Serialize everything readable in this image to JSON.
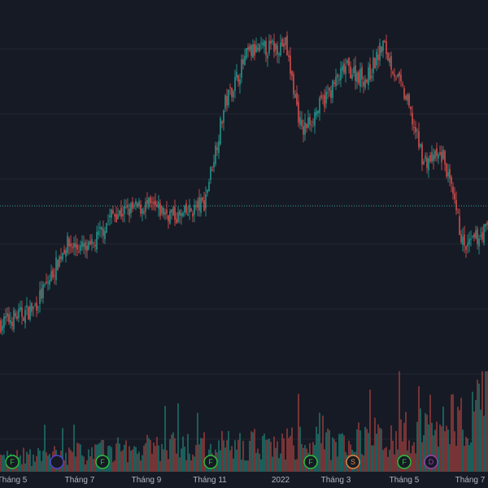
{
  "colors": {
    "background": "#161a25",
    "grid": "#232733",
    "up": "#26a69a",
    "down": "#ef5350",
    "vol_up": "#1f6f68",
    "vol_down": "#8f3a3b",
    "price_line": "#3aa39b",
    "axis_text": "#b2b5be"
  },
  "x_axis": {
    "tick_labels": [
      "Tháng 5",
      "Tháng 7",
      "Tháng 9",
      "Tháng 11",
      "2022",
      "Tháng 3",
      "Tháng 5",
      "Tháng 7"
    ]
  },
  "events": [
    {
      "letter": "F",
      "color": "#2ec23b",
      "icon": "earnings-flag-icon"
    },
    {
      "letter": "",
      "color": "#5b3fd1",
      "icon": "dividend-marker-icon"
    },
    {
      "letter": "F",
      "color": "#2ec23b",
      "icon": "earnings-flag-icon"
    },
    {
      "letter": "F",
      "color": "#2ec23b",
      "icon": "earnings-flag-icon"
    },
    {
      "letter": "F",
      "color": "#2ec23b",
      "icon": "earnings-flag-icon"
    },
    {
      "letter": "S",
      "color": "#e3873a",
      "icon": "split-marker-icon"
    },
    {
      "letter": "F",
      "color": "#2ec23b",
      "icon": "earnings-flag-icon"
    },
    {
      "letter": "D",
      "color": "#9b3fb1",
      "icon": "dividend-marker-icon"
    }
  ],
  "chart_data": {
    "type": "candlestick",
    "price_trend": [
      {
        "bar": 0,
        "close": 55
      },
      {
        "bar": 20,
        "close": 60
      },
      {
        "bar": 30,
        "close": 70
      },
      {
        "bar": 40,
        "close": 82
      },
      {
        "bar": 55,
        "close": 80
      },
      {
        "bar": 68,
        "close": 92
      },
      {
        "bar": 90,
        "close": 95
      },
      {
        "bar": 110,
        "close": 91
      },
      {
        "bar": 125,
        "close": 96
      },
      {
        "bar": 138,
        "close": 130
      },
      {
        "bar": 152,
        "close": 147
      },
      {
        "bar": 175,
        "close": 150
      },
      {
        "bar": 185,
        "close": 120
      },
      {
        "bar": 200,
        "close": 132
      },
      {
        "bar": 212,
        "close": 142
      },
      {
        "bar": 225,
        "close": 138
      },
      {
        "bar": 235,
        "close": 150
      },
      {
        "bar": 250,
        "close": 130
      },
      {
        "bar": 260,
        "close": 110
      },
      {
        "bar": 272,
        "close": 112
      },
      {
        "bar": 285,
        "close": 80
      },
      {
        "bar": 298,
        "close": 87
      }
    ],
    "current_price_level": 95,
    "y_range": [
      35,
      165
    ],
    "volume_range": [
      0,
      100
    ],
    "volume_trend": [
      {
        "bar": 0,
        "volume": 12
      },
      {
        "bar": 60,
        "volume": 18
      },
      {
        "bar": 100,
        "volume": 22
      },
      {
        "bar": 160,
        "volume": 24
      },
      {
        "bar": 200,
        "volume": 26
      },
      {
        "bar": 240,
        "volume": 32
      },
      {
        "bar": 270,
        "volume": 40
      },
      {
        "bar": 299,
        "volume": 70
      }
    ]
  }
}
